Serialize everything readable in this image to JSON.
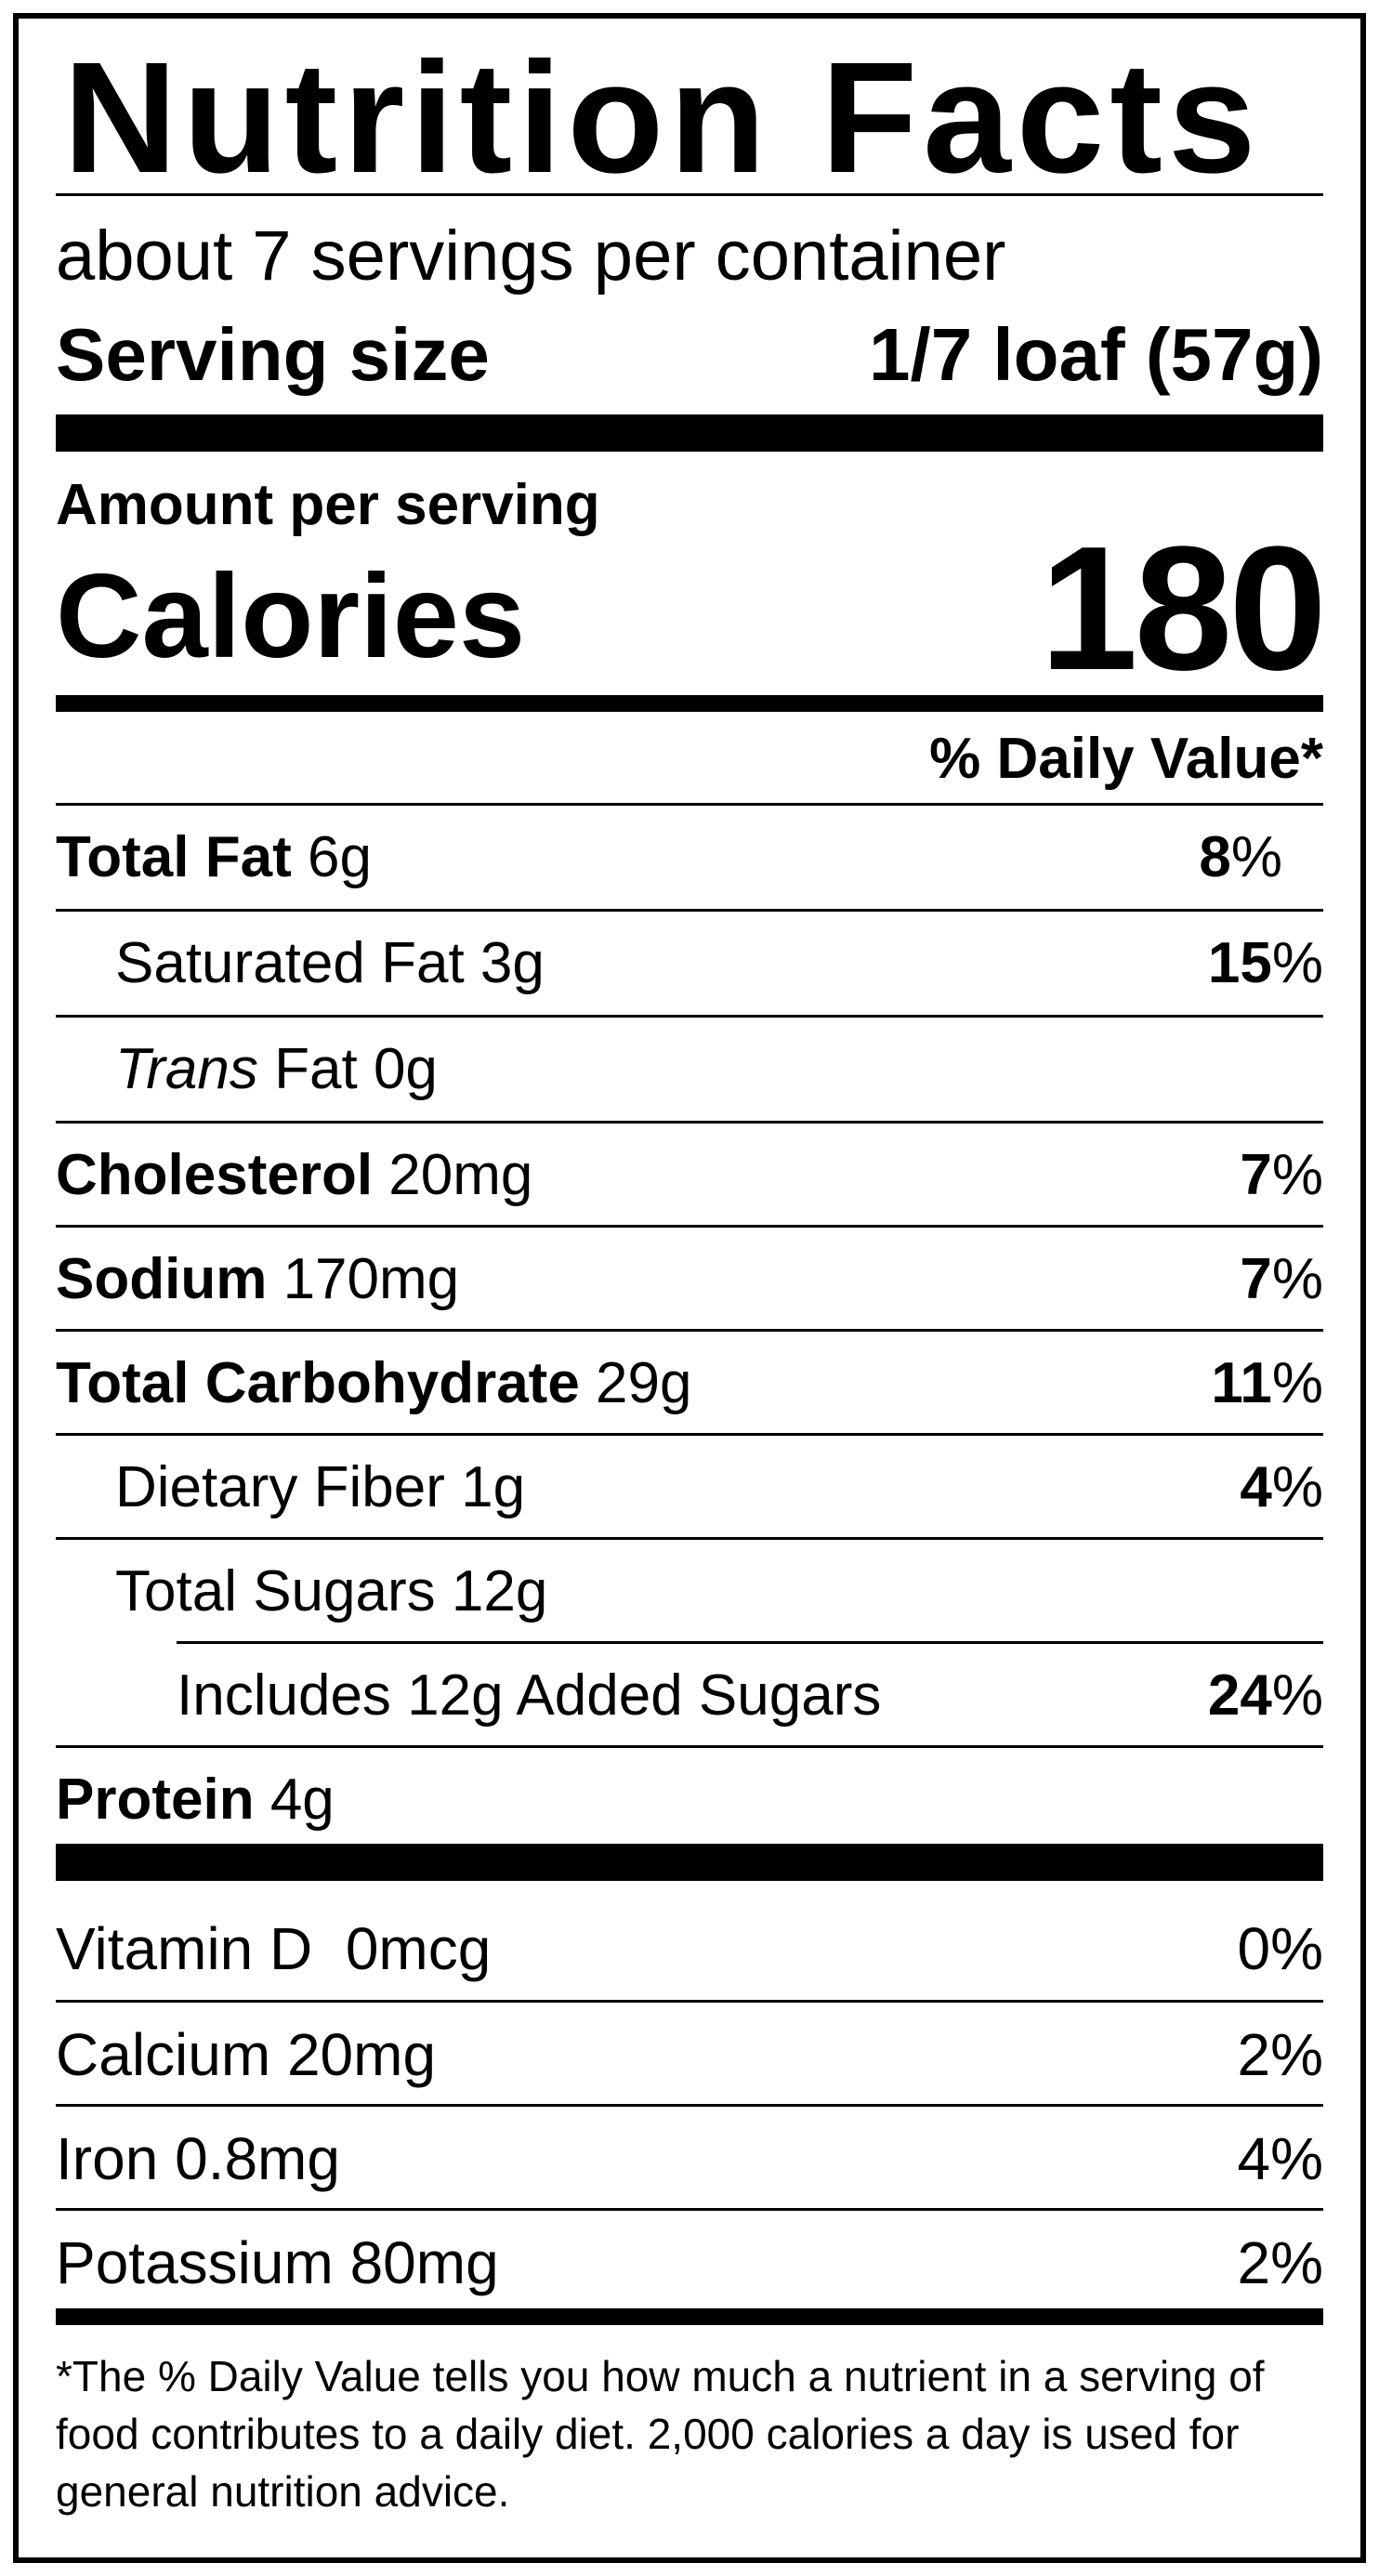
{
  "title": "Nutrition Facts",
  "servings_per_container": "about 7 servings per container",
  "serving_size": {
    "label": "Serving size",
    "value": "1/7 loaf (57g)"
  },
  "amount_per_serving": "Amount per serving",
  "calories": {
    "label": "Calories",
    "value": "180"
  },
  "daily_value_header": "% Daily Value*",
  "nutrients": [
    {
      "name": "Total Fat",
      "amount": "6g",
      "dv": "8",
      "dv_unit": "%"
    },
    {
      "name": "Saturated Fat",
      "amount": "3g",
      "dv": "15",
      "dv_unit": "%"
    },
    {
      "name_italic": "Trans",
      "name": "Fat",
      "amount": "0g",
      "dv": "",
      "dv_unit": ""
    },
    {
      "name": "Cholesterol",
      "amount": "20mg",
      "dv": "7",
      "dv_unit": "%"
    },
    {
      "name": "Sodium",
      "amount": "170mg",
      "dv": "7",
      "dv_unit": "%"
    },
    {
      "name": "Total Carbohydrate",
      "amount": "29g",
      "dv": "11",
      "dv_unit": "%"
    },
    {
      "name": "Dietary Fiber",
      "amount": "1g",
      "dv": "4",
      "dv_unit": "%"
    },
    {
      "name": "Total Sugars",
      "amount": "12g",
      "dv": "",
      "dv_unit": ""
    },
    {
      "name": "Includes 12g Added Sugars",
      "amount": "",
      "dv": "24",
      "dv_unit": "%"
    },
    {
      "name": "Protein",
      "amount": "4g",
      "dv": "",
      "dv_unit": ""
    }
  ],
  "vitamins": [
    {
      "name": "Vitamin D",
      "amount": "0mcg",
      "dv": "0%"
    },
    {
      "name": "Calcium",
      "amount": "20mg",
      "dv": "2%"
    },
    {
      "name": "Iron",
      "amount": "0.8mg",
      "dv": "4%"
    },
    {
      "name": "Potassium",
      "amount": "80mg",
      "dv": "2%"
    }
  ],
  "footnote": "*The % Daily Value tells you how much a nutrient in a serving of food contributes to a daily diet. 2,000 calories a day is used for general nutrition advice."
}
